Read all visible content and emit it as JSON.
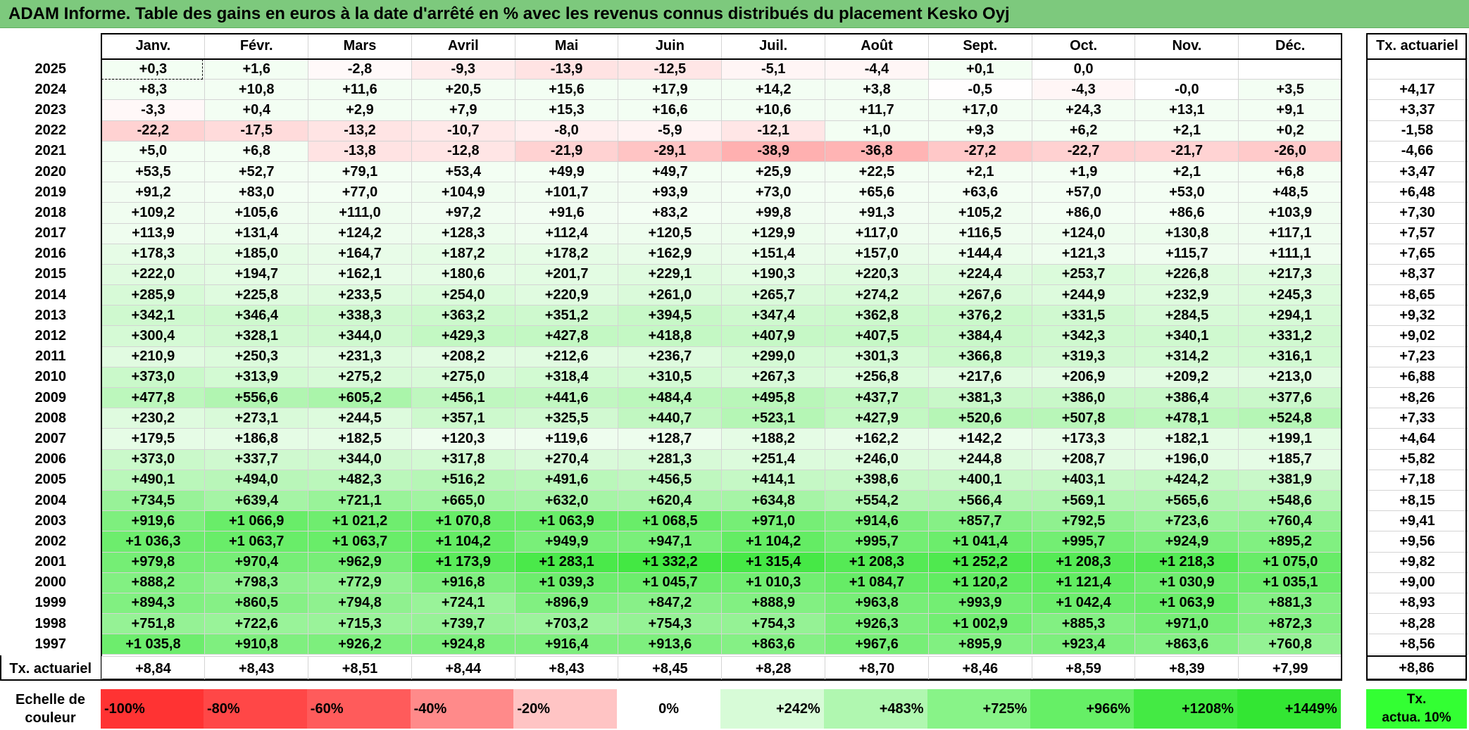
{
  "title": "ADAM Informe. Table des gains en euros à la date d'arrêté en % avec les revenus connus distribués du placement Kesko Oyj",
  "months": [
    "Janv.",
    "Févr.",
    "Mars",
    "Avril",
    "Mai",
    "Juin",
    "Juil.",
    "Août",
    "Sept.",
    "Oct.",
    "Nov.",
    "Déc."
  ],
  "tx_header": "Tx. actuariel",
  "rows": [
    {
      "year": "2025",
      "cells": [
        "+0,3",
        "+1,6",
        "-2,8",
        "-9,3",
        "-13,9",
        "-12,5",
        "-5,1",
        "-4,4",
        "+0,1",
        "0,0",
        "",
        ""
      ],
      "tx": ""
    },
    {
      "year": "2024",
      "cells": [
        "+8,3",
        "+10,8",
        "+11,6",
        "+20,5",
        "+15,6",
        "+17,9",
        "+14,2",
        "+3,8",
        "-0,5",
        "-4,3",
        "-0,0",
        "+3,5"
      ],
      "tx": "+4,17"
    },
    {
      "year": "2023",
      "cells": [
        "-3,3",
        "+0,4",
        "+2,9",
        "+7,9",
        "+15,3",
        "+16,6",
        "+10,6",
        "+11,7",
        "+17,0",
        "+24,3",
        "+13,1",
        "+9,1"
      ],
      "tx": "+3,37"
    },
    {
      "year": "2022",
      "cells": [
        "-22,2",
        "-17,5",
        "-13,2",
        "-10,7",
        "-8,0",
        "-5,9",
        "-12,1",
        "+1,0",
        "+9,3",
        "+6,2",
        "+2,1",
        "+0,2"
      ],
      "tx": "-1,58"
    },
    {
      "year": "2021",
      "cells": [
        "+5,0",
        "+6,8",
        "-13,8",
        "-12,8",
        "-21,9",
        "-29,1",
        "-38,9",
        "-36,8",
        "-27,2",
        "-22,7",
        "-21,7",
        "-26,0"
      ],
      "tx": "-4,66"
    },
    {
      "year": "2020",
      "cells": [
        "+53,5",
        "+52,7",
        "+79,1",
        "+53,4",
        "+49,9",
        "+49,7",
        "+25,9",
        "+22,5",
        "+2,1",
        "+1,9",
        "+2,1",
        "+6,8"
      ],
      "tx": "+3,47"
    },
    {
      "year": "2019",
      "cells": [
        "+91,2",
        "+83,0",
        "+77,0",
        "+104,9",
        "+101,7",
        "+93,9",
        "+73,0",
        "+65,6",
        "+63,6",
        "+57,0",
        "+53,0",
        "+48,5"
      ],
      "tx": "+6,48"
    },
    {
      "year": "2018",
      "cells": [
        "+109,2",
        "+105,6",
        "+111,0",
        "+97,2",
        "+91,6",
        "+83,2",
        "+99,8",
        "+91,3",
        "+105,2",
        "+86,0",
        "+86,6",
        "+103,9"
      ],
      "tx": "+7,30"
    },
    {
      "year": "2017",
      "cells": [
        "+113,9",
        "+131,4",
        "+124,2",
        "+128,3",
        "+112,4",
        "+120,5",
        "+129,9",
        "+117,0",
        "+116,5",
        "+124,0",
        "+130,8",
        "+117,1"
      ],
      "tx": "+7,57"
    },
    {
      "year": "2016",
      "cells": [
        "+178,3",
        "+185,0",
        "+164,7",
        "+187,2",
        "+178,2",
        "+162,9",
        "+151,4",
        "+157,0",
        "+144,4",
        "+121,3",
        "+115,7",
        "+111,1"
      ],
      "tx": "+7,65"
    },
    {
      "year": "2015",
      "cells": [
        "+222,0",
        "+194,7",
        "+162,1",
        "+180,6",
        "+201,7",
        "+229,1",
        "+190,3",
        "+220,3",
        "+224,4",
        "+253,7",
        "+226,8",
        "+217,3"
      ],
      "tx": "+8,37"
    },
    {
      "year": "2014",
      "cells": [
        "+285,9",
        "+225,8",
        "+233,5",
        "+254,0",
        "+220,9",
        "+261,0",
        "+265,7",
        "+274,2",
        "+267,6",
        "+244,9",
        "+232,9",
        "+245,3"
      ],
      "tx": "+8,65"
    },
    {
      "year": "2013",
      "cells": [
        "+342,1",
        "+346,4",
        "+338,3",
        "+363,2",
        "+351,2",
        "+394,5",
        "+347,4",
        "+362,8",
        "+376,2",
        "+331,5",
        "+284,5",
        "+294,1"
      ],
      "tx": "+9,32"
    },
    {
      "year": "2012",
      "cells": [
        "+300,4",
        "+328,1",
        "+344,0",
        "+429,3",
        "+427,8",
        "+418,8",
        "+407,9",
        "+407,5",
        "+384,4",
        "+342,3",
        "+340,1",
        "+331,2"
      ],
      "tx": "+9,02"
    },
    {
      "year": "2011",
      "cells": [
        "+210,9",
        "+250,3",
        "+231,3",
        "+208,2",
        "+212,6",
        "+236,7",
        "+299,0",
        "+301,3",
        "+366,8",
        "+319,3",
        "+314,2",
        "+316,1"
      ],
      "tx": "+7,23"
    },
    {
      "year": "2010",
      "cells": [
        "+373,0",
        "+313,9",
        "+275,2",
        "+275,0",
        "+318,4",
        "+310,5",
        "+267,3",
        "+256,8",
        "+217,6",
        "+206,9",
        "+209,2",
        "+213,0"
      ],
      "tx": "+6,88"
    },
    {
      "year": "2009",
      "cells": [
        "+477,8",
        "+556,6",
        "+605,2",
        "+456,1",
        "+441,6",
        "+484,4",
        "+495,8",
        "+437,7",
        "+381,3",
        "+386,0",
        "+386,4",
        "+377,6"
      ],
      "tx": "+8,26"
    },
    {
      "year": "2008",
      "cells": [
        "+230,2",
        "+273,1",
        "+244,5",
        "+357,1",
        "+325,5",
        "+440,7",
        "+523,1",
        "+427,9",
        "+520,6",
        "+507,8",
        "+478,1",
        "+524,8"
      ],
      "tx": "+7,33"
    },
    {
      "year": "2007",
      "cells": [
        "+179,5",
        "+186,8",
        "+182,5",
        "+120,3",
        "+119,6",
        "+128,7",
        "+188,2",
        "+162,2",
        "+142,2",
        "+173,3",
        "+182,1",
        "+199,1"
      ],
      "tx": "+4,64"
    },
    {
      "year": "2006",
      "cells": [
        "+373,0",
        "+337,7",
        "+344,0",
        "+317,8",
        "+270,4",
        "+281,3",
        "+251,4",
        "+246,0",
        "+244,8",
        "+208,7",
        "+196,0",
        "+185,7"
      ],
      "tx": "+5,82"
    },
    {
      "year": "2005",
      "cells": [
        "+490,1",
        "+494,0",
        "+482,3",
        "+516,2",
        "+491,6",
        "+456,5",
        "+414,1",
        "+398,6",
        "+400,1",
        "+403,1",
        "+424,2",
        "+381,9"
      ],
      "tx": "+7,18"
    },
    {
      "year": "2004",
      "cells": [
        "+734,5",
        "+639,4",
        "+721,1",
        "+665,0",
        "+632,0",
        "+620,4",
        "+634,8",
        "+554,2",
        "+566,4",
        "+569,1",
        "+565,6",
        "+548,6"
      ],
      "tx": "+8,15"
    },
    {
      "year": "2003",
      "cells": [
        "+919,6",
        "+1 066,9",
        "+1 021,2",
        "+1 070,8",
        "+1 063,9",
        "+1 068,5",
        "+971,0",
        "+914,6",
        "+857,7",
        "+792,5",
        "+723,6",
        "+760,4"
      ],
      "tx": "+9,41"
    },
    {
      "year": "2002",
      "cells": [
        "+1 036,3",
        "+1 063,7",
        "+1 063,7",
        "+1 104,2",
        "+949,9",
        "+947,1",
        "+1 104,2",
        "+995,7",
        "+1 041,4",
        "+995,7",
        "+924,9",
        "+895,2"
      ],
      "tx": "+9,56"
    },
    {
      "year": "2001",
      "cells": [
        "+979,8",
        "+970,4",
        "+962,9",
        "+1 173,9",
        "+1 283,1",
        "+1 332,2",
        "+1 315,4",
        "+1 208,3",
        "+1 252,2",
        "+1 208,3",
        "+1 218,3",
        "+1 075,0"
      ],
      "tx": "+9,82"
    },
    {
      "year": "2000",
      "cells": [
        "+888,2",
        "+798,3",
        "+772,9",
        "+916,8",
        "+1 039,3",
        "+1 045,7",
        "+1 010,3",
        "+1 084,7",
        "+1 120,2",
        "+1 121,4",
        "+1 030,9",
        "+1 035,1"
      ],
      "tx": "+9,00"
    },
    {
      "year": "1999",
      "cells": [
        "+894,3",
        "+860,5",
        "+794,8",
        "+724,1",
        "+896,9",
        "+847,2",
        "+888,9",
        "+963,8",
        "+993,9",
        "+1 042,4",
        "+1 063,9",
        "+881,3"
      ],
      "tx": "+8,93"
    },
    {
      "year": "1998",
      "cells": [
        "+751,8",
        "+722,6",
        "+715,3",
        "+739,7",
        "+703,2",
        "+754,3",
        "+754,3",
        "+926,3",
        "+1 002,9",
        "+885,3",
        "+971,0",
        "+872,3"
      ],
      "tx": "+8,28"
    },
    {
      "year": "1997",
      "cells": [
        "+1 035,8",
        "+910,8",
        "+926,2",
        "+924,8",
        "+916,4",
        "+913,6",
        "+863,6",
        "+967,6",
        "+895,9",
        "+923,4",
        "+863,6",
        "+760,8"
      ],
      "tx": "+8,56"
    }
  ],
  "footer": {
    "label": "Tx. actuariel",
    "cells": [
      "+8,84",
      "+8,43",
      "+8,51",
      "+8,44",
      "+8,43",
      "+8,45",
      "+8,28",
      "+8,70",
      "+8,46",
      "+8,59",
      "+8,39",
      "+7,99"
    ],
    "tx": "+8,86"
  },
  "scale": {
    "label_line1": "Echelle de",
    "label_line2": "couleur",
    "cells": [
      {
        "text": "-100%",
        "color": "#ff3333",
        "align": "left"
      },
      {
        "text": "-80%",
        "color": "#ff4747",
        "align": "left"
      },
      {
        "text": "-60%",
        "color": "#ff5b5b",
        "align": "left"
      },
      {
        "text": "-40%",
        "color": "#ff8a8a",
        "align": "left"
      },
      {
        "text": "-20%",
        "color": "#ffc4c4",
        "align": "left"
      },
      {
        "text": "0%",
        "color": "#ffffff",
        "align": "center"
      },
      {
        "text": "+242%",
        "color": "#d7fbd7",
        "align": "right"
      },
      {
        "text": "+483%",
        "color": "#b0f7b0",
        "align": "right"
      },
      {
        "text": "+725%",
        "color": "#88f388",
        "align": "right"
      },
      {
        "text": "+966%",
        "color": "#66ef66",
        "align": "right"
      },
      {
        "text": "+1208%",
        "color": "#44ea44",
        "align": "right"
      },
      {
        "text": "+1449%",
        "color": "#33e633",
        "align": "right"
      }
    ],
    "tx_line1": "Tx.",
    "tx_line2": "actua. 10%",
    "tx_color": "#33ff33"
  }
}
